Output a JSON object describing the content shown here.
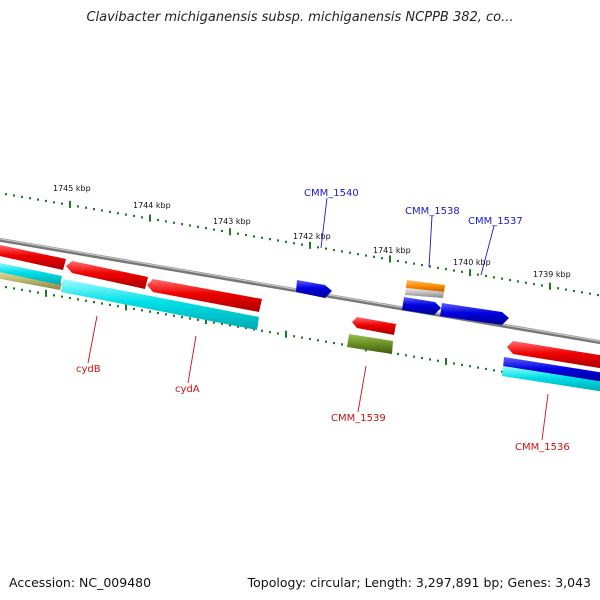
{
  "title": "Clavibacter michiganensis subsp. michiganensis NCPPB 382, co...",
  "footer": {
    "accession": "Accession: NC_009480",
    "topology": "Topology: circular; Length: 3,297,891 bp; Genes: 3,043"
  },
  "ticks": [
    "1745 kbp",
    "1744 kbp",
    "1743 kbp",
    "1742 kbp",
    "1741 kbp",
    "1740 kbp",
    "1739 kbp"
  ],
  "gene_labels": {
    "cmm1540": "CMM_1540",
    "cmm1538": "CMM_1538",
    "cmm1537": "CMM_1537",
    "cydB": "cydB",
    "cydA": "cydA",
    "cmm1539": "CMM_1539",
    "cmm1536": "CMM_1536"
  },
  "colors": {
    "red": "#ee0000",
    "cyan": "#00e0e8",
    "blue": "#0000e0",
    "orange": "#ff8c00",
    "olive": "#6b8e23",
    "khaki": "#bdb76b",
    "tick_green": "#1e7a1e",
    "backbone": "#888888"
  }
}
